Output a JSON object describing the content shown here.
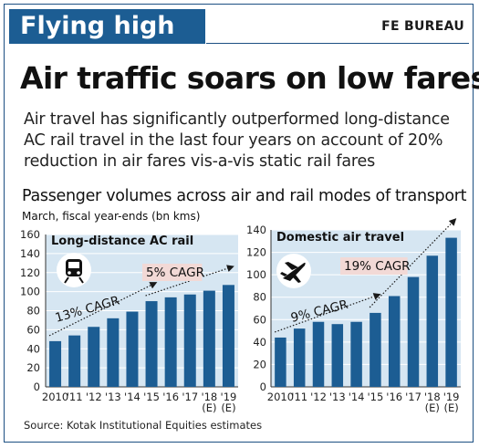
{
  "header": {
    "banner": "Flying high",
    "byline": "FE BUREAU"
  },
  "headline": "Air traffic soars on low fares",
  "deck": "Air travel has significantly outperformed long-distance AC rail travel in the last four years on account of 20% reduction in air fares vis-a-vis static rail fares",
  "chart_title": "Passenger volumes across air and rail modes of transport",
  "chart_subtitle": "March, fiscal year-ends (bn kms)",
  "source": "Source: Kotak Institutional Equities estimates",
  "colors": {
    "bar": "#1c5d93",
    "panel": "#d6e6f2",
    "label_box": "#f2d9d6",
    "arrow": "#1a1a1a"
  },
  "chart_data": [
    {
      "type": "bar",
      "title": "Long-distance AC rail",
      "icon": "train-icon",
      "categories": [
        "2010",
        "'11",
        "'12",
        "'13",
        "'14",
        "'15",
        "'16",
        "'17",
        "'18\n(E)",
        "'19\n(E)"
      ],
      "values": [
        48,
        54,
        63,
        72,
        79,
        90,
        94,
        97,
        101,
        107
      ],
      "ylim": [
        0,
        160
      ],
      "yticks": [
        0,
        20,
        40,
        60,
        80,
        100,
        120,
        140,
        160
      ],
      "grid": true,
      "annotations": [
        {
          "text": "13% CAGR",
          "from": 0,
          "to": 5
        },
        {
          "text": "5% CAGR",
          "from": 5,
          "to": 9,
          "boxed": true
        }
      ]
    },
    {
      "type": "bar",
      "title": "Domestic air travel",
      "icon": "airplane-icon",
      "categories": [
        "2010",
        "'11",
        "'12",
        "'13",
        "'14",
        "'15",
        "'16",
        "'17",
        "'18\n(E)",
        "'19\n(E)"
      ],
      "values": [
        44,
        52,
        58,
        56,
        58,
        66,
        81,
        98,
        117,
        133
      ],
      "ylim": [
        0,
        140
      ],
      "yticks": [
        0,
        20,
        40,
        60,
        80,
        100,
        120,
        140
      ],
      "grid": true,
      "annotations": [
        {
          "text": "9% CAGR",
          "from": 0,
          "to": 5
        },
        {
          "text": "19% CAGR",
          "from": 5,
          "to": 9,
          "boxed": true
        }
      ]
    }
  ]
}
